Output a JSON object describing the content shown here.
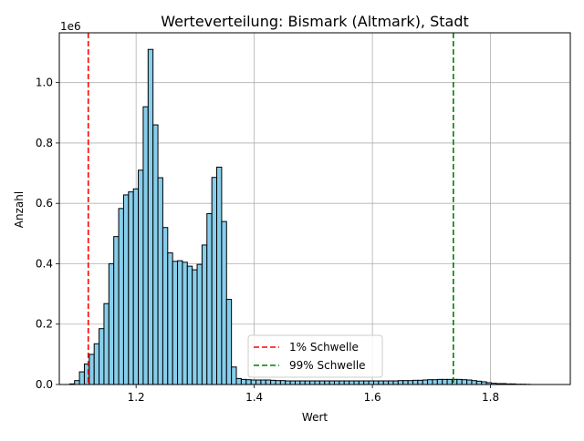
{
  "chart_data": {
    "type": "bar",
    "title": "Werteverteilung: Bismark (Altmark), Stadt",
    "xlabel": "Wert",
    "ylabel": "Anzahl",
    "y_scale_label": "1e6",
    "xlim": [
      1.07,
      1.935
    ],
    "ylim": [
      0,
      1.165
    ],
    "xticks": [
      1.2,
      1.4,
      1.6,
      1.8
    ],
    "xtick_labels": [
      "1.2",
      "1.4",
      "1.6",
      "1.8"
    ],
    "yticks": [
      0,
      0.2,
      0.4,
      0.6,
      0.8,
      1.0
    ],
    "ytick_labels": [
      "0.0",
      "0.2",
      "0.4",
      "0.6",
      "0.8",
      "1.0"
    ],
    "grid": true,
    "legend_position": "lower-center",
    "bar_color": "#87ceeb",
    "bar_edge_color": "#000000",
    "bin_start": 1.0875,
    "bin_width": 0.0083,
    "values": [
      0.002,
      0.013,
      0.042,
      0.068,
      0.1,
      0.135,
      0.185,
      0.268,
      0.4,
      0.49,
      0.583,
      0.628,
      0.638,
      0.648,
      0.71,
      0.92,
      1.11,
      0.86,
      0.685,
      0.52,
      0.436,
      0.408,
      0.41,
      0.405,
      0.392,
      0.38,
      0.398,
      0.462,
      0.566,
      0.686,
      0.72,
      0.54,
      0.282,
      0.058,
      0.02,
      0.017,
      0.016,
      0.015,
      0.015,
      0.015,
      0.015,
      0.014,
      0.013,
      0.013,
      0.012,
      0.012,
      0.012,
      0.012,
      0.012,
      0.012,
      0.012,
      0.012,
      0.012,
      0.012,
      0.012,
      0.012,
      0.012,
      0.012,
      0.012,
      0.012,
      0.012,
      0.012,
      0.012,
      0.012,
      0.012,
      0.012,
      0.012,
      0.013,
      0.013,
      0.013,
      0.014,
      0.014,
      0.015,
      0.016,
      0.016,
      0.017,
      0.017,
      0.017,
      0.017,
      0.017,
      0.016,
      0.015,
      0.013,
      0.011,
      0.009,
      0.006,
      0.004,
      0.003,
      0.003,
      0.002,
      0.002,
      0.001,
      0.001,
      0.0005
    ],
    "thresholds": [
      {
        "label": "1% Schwelle",
        "x": 1.119,
        "color": "#ff0000"
      },
      {
        "label": "99% Schwelle",
        "x": 1.737,
        "color": "#008000"
      }
    ]
  }
}
